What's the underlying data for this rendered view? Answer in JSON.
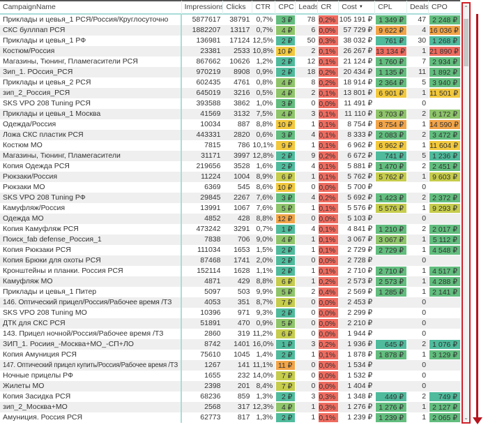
{
  "headers": {
    "name": "CampaignName",
    "impressions": "Impressions",
    "clicks": "Clicks",
    "ctr": "CTR",
    "cpc": "CPC",
    "leads": "Leads",
    "cr": "CR",
    "cost": "Cost",
    "cpl": "CPL",
    "deals": "Deals",
    "cpo": "CPO"
  },
  "sort": {
    "column": "Cost",
    "direction": "descending"
  },
  "palette": {
    "teal": "#4fbb9c",
    "green": "#62bd7e",
    "lightgreen": "#8fc56a",
    "yellowgreen": "#c6cc4c",
    "yellow": "#f2c83c",
    "orange": "#f2a448",
    "red": "#ef6b5f"
  },
  "rows": [
    {
      "name": "Приклады и цевья_1 РСЯ/Россия/Круглосуточно",
      "impressions": "5877617",
      "clicks": "38791",
      "ctr": "0,7%",
      "cpc": "3 ₽",
      "leads": "78",
      "cr": "0,2%",
      "cost": "105 191 ₽",
      "cpl": "1 349 ₽",
      "deals": "47",
      "cpo": "2 248 ₽"
    },
    {
      "name": "СКС буллпап РСЯ",
      "impressions": "1882207",
      "clicks": "13117",
      "ctr": "0,7%",
      "cpc": "4 ₽",
      "leads": "6",
      "cr": "0,0%",
      "cost": "57 729 ₽",
      "cpl": "9 622 ₽",
      "deals": "4",
      "cpo": "16 036 ₽"
    },
    {
      "name": "Приклады и цевья_1 РФ",
      "impressions": "136981",
      "clicks": "17124",
      "ctr": "12,5%",
      "cpc": "2 ₽",
      "leads": "50",
      "cr": "0,3%",
      "cost": "38 032 ₽",
      "cpl": "761 ₽",
      "deals": "30",
      "cpo": "1 268 ₽"
    },
    {
      "name": "Костюм/Россия",
      "impressions": "23381",
      "clicks": "2533",
      "ctr": "10,8%",
      "cpc": "10 ₽",
      "leads": "2",
      "cr": "0,1%",
      "cost": "26 267 ₽",
      "cpl": "13 134 ₽",
      "deals": "1",
      "cpo": "21 890 ₽"
    },
    {
      "name": "Магазины, Тюнинг, Пламегасители РСЯ",
      "impressions": "867662",
      "clicks": "10626",
      "ctr": "1,2%",
      "cpc": "2 ₽",
      "leads": "12",
      "cr": "0,1%",
      "cost": "21 124 ₽",
      "cpl": "1 760 ₽",
      "deals": "7",
      "cpo": "2 934 ₽"
    },
    {
      "name": "Зип_1. РОссия_РСЯ",
      "impressions": "970219",
      "clicks": "8908",
      "ctr": "0,9%",
      "cpc": "2 ₽",
      "leads": "18",
      "cr": "0,2%",
      "cost": "20 434 ₽",
      "cpl": "1 135 ₽",
      "deals": "11",
      "cpo": "1 892 ₽"
    },
    {
      "name": "Приклады и цевья_2 РСЯ",
      "impressions": "602435",
      "clicks": "4761",
      "ctr": "0,8%",
      "cpc": "4 ₽",
      "leads": "8",
      "cr": "0,2%",
      "cost": "18 914 ₽",
      "cpl": "2 364 ₽",
      "deals": "5",
      "cpo": "3 940 ₽"
    },
    {
      "name": "зип_2_Россия_РСЯ",
      "impressions": "645019",
      "clicks": "3216",
      "ctr": "0,5%",
      "cpc": "4 ₽",
      "leads": "2",
      "cr": "0,1%",
      "cost": "13 801 ₽",
      "cpl": "6 901 ₽",
      "deals": "1",
      "cpo": "11 501 ₽"
    },
    {
      "name": "SKS VPO 208 Tuning РСЯ",
      "impressions": "393588",
      "clicks": "3862",
      "ctr": "1,0%",
      "cpc": "3 ₽",
      "leads": "0",
      "cr": "0,0%",
      "cost": "11 491 ₽",
      "cpl": "",
      "deals": "0",
      "cpo": ""
    },
    {
      "name": "Приклады и цевья_1 Москва",
      "impressions": "41569",
      "clicks": "3132",
      "ctr": "7,5%",
      "cpc": "4 ₽",
      "leads": "3",
      "cr": "0,1%",
      "cost": "11 110 ₽",
      "cpl": "3 703 ₽",
      "deals": "2",
      "cpo": "6 172 ₽"
    },
    {
      "name": "Одежда/Россия",
      "impressions": "10034",
      "clicks": "887",
      "ctr": "8,8%",
      "cpc": "10 ₽",
      "leads": "1",
      "cr": "0,1%",
      "cost": "8 754 ₽",
      "cpl": "8 754 ₽",
      "deals": "1",
      "cpo": "14 590 ₽"
    },
    {
      "name": "Ложа СКС пластик РСЯ",
      "impressions": "443331",
      "clicks": "2820",
      "ctr": "0,6%",
      "cpc": "3 ₽",
      "leads": "4",
      "cr": "0,1%",
      "cost": "8 333 ₽",
      "cpl": "2 083 ₽",
      "deals": "2",
      "cpo": "3 472 ₽"
    },
    {
      "name": "Костюм МО",
      "impressions": "7815",
      "clicks": "786",
      "ctr": "10,1%",
      "cpc": "9 ₽",
      "leads": "1",
      "cr": "0,1%",
      "cost": "6 962 ₽",
      "cpl": "6 962 ₽",
      "deals": "1",
      "cpo": "11 604 ₽"
    },
    {
      "name": "Магазины, Тюнинг, Пламегасители",
      "impressions": "31171",
      "clicks": "3997",
      "ctr": "12,8%",
      "cpc": "2 ₽",
      "leads": "9",
      "cr": "0,2%",
      "cost": "6 672 ₽",
      "cpl": "741 ₽",
      "deals": "5",
      "cpo": "1 236 ₽"
    },
    {
      "name": "Копия Одежда РСЯ",
      "impressions": "219656",
      "clicks": "3528",
      "ctr": "1,6%",
      "cpc": "2 ₽",
      "leads": "4",
      "cr": "0,1%",
      "cost": "5 881 ₽",
      "cpl": "1 470 ₽",
      "deals": "2",
      "cpo": "2 451 ₽"
    },
    {
      "name": "Рюкзаки/Россия",
      "impressions": "11224",
      "clicks": "1004",
      "ctr": "8,9%",
      "cpc": "6 ₽",
      "leads": "1",
      "cr": "0,1%",
      "cost": "5 762 ₽",
      "cpl": "5 762 ₽",
      "deals": "1",
      "cpo": "9 603 ₽"
    },
    {
      "name": "Рюкзаки МО",
      "impressions": "6369",
      "clicks": "545",
      "ctr": "8,6%",
      "cpc": "10 ₽",
      "leads": "0",
      "cr": "0,0%",
      "cost": "5 700 ₽",
      "cpl": "",
      "deals": "0",
      "cpo": ""
    },
    {
      "name": "SKS VPO 208 Tuning РФ",
      "impressions": "29845",
      "clicks": "2267",
      "ctr": "7,6%",
      "cpc": "3 ₽",
      "leads": "4",
      "cr": "0,2%",
      "cost": "5 692 ₽",
      "cpl": "1 423 ₽",
      "deals": "2",
      "cpo": "2 372 ₽"
    },
    {
      "name": "Камуфляж/Россия",
      "impressions": "13991",
      "clicks": "1067",
      "ctr": "7,6%",
      "cpc": "5 ₽",
      "leads": "1",
      "cr": "0,1%",
      "cost": "5 576 ₽",
      "cpl": "5 576 ₽",
      "deals": "1",
      "cpo": "9 293 ₽"
    },
    {
      "name": "Одежда МО",
      "impressions": "4852",
      "clicks": "428",
      "ctr": "8,8%",
      "cpc": "12 ₽",
      "leads": "0",
      "cr": "0,0%",
      "cost": "5 103 ₽",
      "cpl": "",
      "deals": "0",
      "cpo": ""
    },
    {
      "name": "Копия Камуфляж РСЯ",
      "impressions": "473242",
      "clicks": "3291",
      "ctr": "0,7%",
      "cpc": "1 ₽",
      "leads": "4",
      "cr": "0,1%",
      "cost": "4 841 ₽",
      "cpl": "1 210 ₽",
      "deals": "2",
      "cpo": "2 017 ₽"
    },
    {
      "name": "Поиск_fab defense_Россия_1",
      "impressions": "7838",
      "clicks": "706",
      "ctr": "9,0%",
      "cpc": "4 ₽",
      "leads": "1",
      "cr": "0,1%",
      "cost": "3 067 ₽",
      "cpl": "3 067 ₽",
      "deals": "1",
      "cpo": "5 112 ₽"
    },
    {
      "name": "Копия Рюкзаки РСЯ",
      "impressions": "111034",
      "clicks": "1653",
      "ctr": "1,5%",
      "cpc": "2 ₽",
      "leads": "1",
      "cr": "0,1%",
      "cost": "2 729 ₽",
      "cpl": "2 729 ₽",
      "deals": "1",
      "cpo": "4 548 ₽"
    },
    {
      "name": "Копия Брюки для охоты РСЯ",
      "impressions": "87468",
      "clicks": "1741",
      "ctr": "2,0%",
      "cpc": "2 ₽",
      "leads": "0",
      "cr": "0,0%",
      "cost": "2 728 ₽",
      "cpl": "",
      "deals": "0",
      "cpo": ""
    },
    {
      "name": "Кронштейны и планки. Россия РСЯ",
      "impressions": "152114",
      "clicks": "1628",
      "ctr": "1,1%",
      "cpc": "2 ₽",
      "leads": "1",
      "cr": "0,1%",
      "cost": "2 710 ₽",
      "cpl": "2 710 ₽",
      "deals": "1",
      "cpo": "4 517 ₽"
    },
    {
      "name": "Камуфляж МО",
      "impressions": "4871",
      "clicks": "429",
      "ctr": "8,8%",
      "cpc": "6 ₽",
      "leads": "1",
      "cr": "0,2%",
      "cost": "2 573 ₽",
      "cpl": "2 573 ₽",
      "deals": "1",
      "cpo": "4 288 ₽"
    },
    {
      "name": "Приклады и цевья_1 Питер",
      "impressions": "5097",
      "clicks": "503",
      "ctr": "9,9%",
      "cpc": "5 ₽",
      "leads": "2",
      "cr": "0,4%",
      "cost": "2 569 ₽",
      "cpl": "1 285 ₽",
      "deals": "1",
      "cpo": "2 141 ₽"
    },
    {
      "name": "146. Оптический прицел/Россия/Рабочее время /ТЗ",
      "impressions": "4053",
      "clicks": "351",
      "ctr": "8,7%",
      "cpc": "7 ₽",
      "leads": "0",
      "cr": "0,0%",
      "cost": "2 453 ₽",
      "cpl": "",
      "deals": "0",
      "cpo": ""
    },
    {
      "name": "SKS VPO 208 Tuning МО",
      "impressions": "10396",
      "clicks": "971",
      "ctr": "9,3%",
      "cpc": "2 ₽",
      "leads": "0",
      "cr": "0,0%",
      "cost": "2 299 ₽",
      "cpl": "",
      "deals": "0",
      "cpo": ""
    },
    {
      "name": "ДТК для СКС РСЯ",
      "impressions": "51891",
      "clicks": "470",
      "ctr": "0,9%",
      "cpc": "5 ₽",
      "leads": "0",
      "cr": "0,0%",
      "cost": "2 210 ₽",
      "cpl": "",
      "deals": "0",
      "cpo": ""
    },
    {
      "name": "143. Прицел ночной/Россия/Рабочее время /ТЗ",
      "impressions": "2860",
      "clicks": "319",
      "ctr": "11,2%",
      "cpc": "6 ₽",
      "leads": "0",
      "cr": "0,0%",
      "cost": "1 944 ₽",
      "cpl": "",
      "deals": "0",
      "cpo": ""
    },
    {
      "name": "ЗИП_1. Росиия_-Москва+МО_-СП+ЛО",
      "impressions": "8742",
      "clicks": "1401",
      "ctr": "16,0%",
      "cpc": "1 ₽",
      "leads": "3",
      "cr": "0,2%",
      "cost": "1 936 ₽",
      "cpl": "645 ₽",
      "deals": "2",
      "cpo": "1 076 ₽"
    },
    {
      "name": "Копия Амуниция РСЯ",
      "impressions": "75610",
      "clicks": "1045",
      "ctr": "1,4%",
      "cpc": "2 ₽",
      "leads": "1",
      "cr": "0,1%",
      "cost": "1 878 ₽",
      "cpl": "1 878 ₽",
      "deals": "1",
      "cpo": "3 129 ₽"
    },
    {
      "name": "147. Оптический прицел купить/Россия/Рабочее время /ТЗ",
      "impressions": "1267",
      "clicks": "141",
      "ctr": "11,1%",
      "cpc": "11 ₽",
      "leads": "0",
      "cr": "0,0%",
      "cost": "1 534 ₽",
      "cpl": "",
      "deals": "0",
      "cpo": ""
    },
    {
      "name": "Ночные прицелы РФ",
      "impressions": "1655",
      "clicks": "232",
      "ctr": "14,0%",
      "cpc": "7 ₽",
      "leads": "0",
      "cr": "0,0%",
      "cost": "1 532 ₽",
      "cpl": "",
      "deals": "0",
      "cpo": ""
    },
    {
      "name": "Жилеты МО",
      "impressions": "2398",
      "clicks": "201",
      "ctr": "8,4%",
      "cpc": "7 ₽",
      "leads": "0",
      "cr": "0,0%",
      "cost": "1 404 ₽",
      "cpl": "",
      "deals": "0",
      "cpo": ""
    },
    {
      "name": "Копия Засидка РСЯ",
      "impressions": "68236",
      "clicks": "859",
      "ctr": "1,3%",
      "cpc": "2 ₽",
      "leads": "3",
      "cr": "0,3%",
      "cost": "1 348 ₽",
      "cpl": "449 ₽",
      "deals": "2",
      "cpo": "749 ₽"
    },
    {
      "name": "зип_2_Москва+МО",
      "impressions": "2568",
      "clicks": "317",
      "ctr": "12,3%",
      "cpc": "4 ₽",
      "leads": "1",
      "cr": "0,3%",
      "cost": "1 276 ₽",
      "cpl": "1 276 ₽",
      "deals": "1",
      "cpo": "2 127 ₽"
    },
    {
      "name": "Амуниция. Россия РСЯ",
      "impressions": "62773",
      "clicks": "817",
      "ctr": "1,3%",
      "cpc": "2 ₽",
      "leads": "1",
      "cr": "0,1%",
      "cost": "1 239 ₽",
      "cpl": "1 239 ₽",
      "deals": "1",
      "cpo": "2 065 ₽"
    }
  ]
}
